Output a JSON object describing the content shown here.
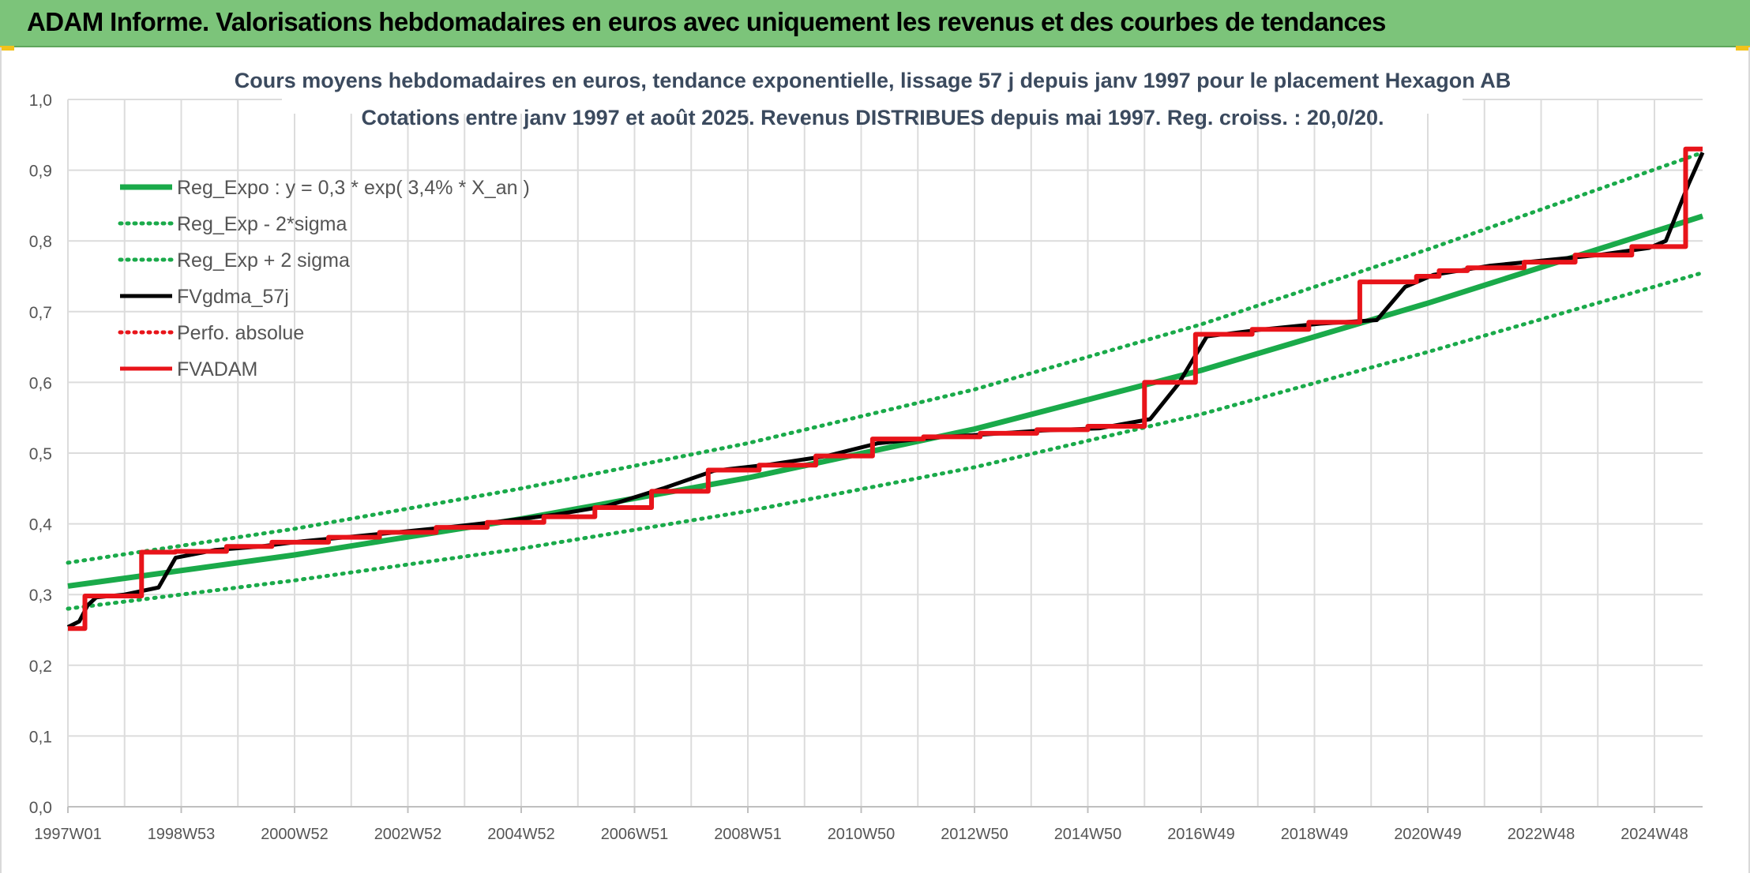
{
  "header": {
    "title": "ADAM Informe. Valorisations hebdomadaires en euros avec uniquement les revenus et des courbes de tendances"
  },
  "colors": {
    "header_bg": "#7cc47a",
    "reg_expo": "#1aaa4a",
    "fvgdma": "#000000",
    "fvadam": "#e8141a",
    "perfo": "#e8141a",
    "grid": "#dcdcdc"
  },
  "chart_data": {
    "type": "line",
    "title_line1": "Cours moyens hebdomadaires en euros, tendance exponentielle, lissage 57 j depuis janv 1997 pour le placement Hexagon AB",
    "title_line2": "Cotations entre janv 1997 et août 2025. Revenus DISTRIBUES depuis mai 1997. Reg. croiss. : 20,0/20.",
    "xlabel": "",
    "ylabel": "",
    "ylim": [
      0,
      1.0
    ],
    "y_ticks": [
      "0,0",
      "0,1",
      "0,2",
      "0,3",
      "0,4",
      "0,5",
      "0,6",
      "0,7",
      "0,8",
      "0,9",
      "1,0"
    ],
    "x_ticks": [
      {
        "label": "1997W01",
        "year": 1997.0
      },
      {
        "label": "1998W53",
        "year": 1999.0
      },
      {
        "label": "2000W52",
        "year": 2001.0
      },
      {
        "label": "2002W52",
        "year": 2003.0
      },
      {
        "label": "2004W52",
        "year": 2005.0
      },
      {
        "label": "2006W51",
        "year": 2007.0
      },
      {
        "label": "2008W51",
        "year": 2009.0
      },
      {
        "label": "2010W50",
        "year": 2011.0
      },
      {
        "label": "2012W50",
        "year": 2013.0
      },
      {
        "label": "2014W50",
        "year": 2015.0
      },
      {
        "label": "2016W49",
        "year": 2017.0
      },
      {
        "label": "2018W49",
        "year": 2019.0
      },
      {
        "label": "2020W49",
        "year": 2021.0
      },
      {
        "label": "2022W48",
        "year": 2023.0
      },
      {
        "label": "2024W48",
        "year": 2025.0
      }
    ],
    "x_range": [
      1997.0,
      2025.85
    ],
    "grid": true,
    "legend_position": "top-left",
    "series": [
      {
        "name": "Reg_Expo : y = 0,3 * exp( 3,4% *  X_an )",
        "style": "solid-thick",
        "color": "#1aaa4a",
        "x": [
          1997.0,
          2001.0,
          2005.0,
          2009.0,
          2013.0,
          2017.0,
          2021.0,
          2025.85
        ],
        "y": [
          0.312,
          0.356,
          0.407,
          0.465,
          0.534,
          0.617,
          0.712,
          0.835
        ]
      },
      {
        "name": "Reg_Exp - 2*sigma",
        "style": "dotted",
        "color": "#1aaa4a",
        "x": [
          1997.0,
          2001.0,
          2005.0,
          2009.0,
          2013.0,
          2017.0,
          2021.0,
          2025.85
        ],
        "y": [
          0.28,
          0.32,
          0.365,
          0.418,
          0.48,
          0.555,
          0.643,
          0.755
        ]
      },
      {
        "name": "Reg_Exp + 2 sigma",
        "style": "dotted",
        "color": "#1aaa4a",
        "x": [
          1997.0,
          2001.0,
          2005.0,
          2009.0,
          2013.0,
          2017.0,
          2021.0,
          2025.85
        ],
        "y": [
          0.345,
          0.393,
          0.45,
          0.514,
          0.59,
          0.682,
          0.788,
          0.925
        ]
      },
      {
        "name": "FVgdma_57j",
        "style": "solid",
        "color": "#000000",
        "x": [
          1997.0,
          1997.2,
          1997.35,
          1997.5,
          1998.0,
          1998.6,
          1998.9,
          1999.6,
          2000.4,
          2001.1,
          2001.9,
          2002.8,
          2003.8,
          2004.7,
          2005.6,
          2006.5,
          2007.5,
          2008.4,
          2009.4,
          2010.4,
          2011.3,
          2012.3,
          2013.3,
          2014.2,
          2015.2,
          2016.1,
          2016.6,
          2017.1,
          2018.1,
          2019.1,
          2020.1,
          2020.6,
          2021.1,
          2022.1,
          2023.0,
          2024.0,
          2024.9,
          2025.2,
          2025.6,
          2025.85
        ],
        "y": [
          0.254,
          0.262,
          0.285,
          0.296,
          0.3,
          0.31,
          0.352,
          0.363,
          0.368,
          0.375,
          0.381,
          0.388,
          0.396,
          0.404,
          0.413,
          0.425,
          0.45,
          0.475,
          0.484,
          0.496,
          0.514,
          0.522,
          0.527,
          0.532,
          0.535,
          0.548,
          0.598,
          0.665,
          0.675,
          0.683,
          0.688,
          0.735,
          0.752,
          0.765,
          0.772,
          0.78,
          0.79,
          0.8,
          0.88,
          0.925
        ]
      },
      {
        "name": "Perfo. absolue",
        "style": "dotted",
        "color": "#e8141a",
        "x": [],
        "y": []
      },
      {
        "name": "FVADAM",
        "style": "step-thick",
        "color": "#e8141a",
        "x": [
          1997.0,
          1997.3,
          1998.3,
          1998.9,
          1999.8,
          2000.6,
          2001.6,
          2002.5,
          2003.5,
          2004.4,
          2005.4,
          2006.3,
          2007.3,
          2008.3,
          2009.2,
          2010.2,
          2011.2,
          2012.1,
          2013.1,
          2014.1,
          2015.0,
          2016.0,
          2016.9,
          2017.9,
          2018.9,
          2019.8,
          2020.8,
          2021.2,
          2021.7,
          2022.7,
          2023.6,
          2024.6,
          2025.55,
          2025.85
        ],
        "y": [
          0.252,
          0.298,
          0.36,
          0.361,
          0.368,
          0.374,
          0.381,
          0.388,
          0.395,
          0.402,
          0.41,
          0.423,
          0.446,
          0.476,
          0.483,
          0.496,
          0.52,
          0.523,
          0.528,
          0.533,
          0.538,
          0.6,
          0.668,
          0.675,
          0.685,
          0.742,
          0.75,
          0.758,
          0.762,
          0.77,
          0.78,
          0.792,
          0.93,
          0.93
        ]
      }
    ]
  }
}
